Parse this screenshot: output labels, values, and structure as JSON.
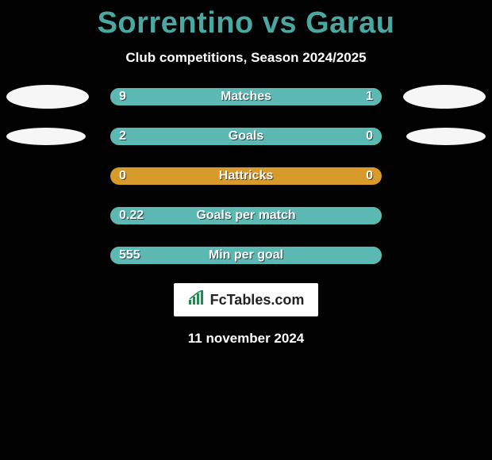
{
  "colors": {
    "background": "#010101",
    "title": "#4aa8a3",
    "text_white": "#ffffff",
    "ellipse": "#f6f6f6",
    "bar_track": "#d89a2b",
    "bar_left_fill": "#5bb8b3",
    "bar_right_fill": "#5bb8b3",
    "brand_bg": "#ffffff",
    "brand_text": "#222222",
    "brand_icon": "#1a8f4d"
  },
  "title": {
    "player_a": "Sorrentino",
    "vs": "vs",
    "player_b": "Garau",
    "fontsize": 38
  },
  "subtitle": "Club competitions, Season 2024/2025",
  "ellipse_sizes": {
    "big_w": 104,
    "big_h": 30,
    "small_w": 100,
    "small_h": 22
  },
  "bar": {
    "track_width": 342,
    "track_height": 22
  },
  "rows": [
    {
      "metric": "Matches",
      "left_value": "9",
      "right_value": "1",
      "left_pct": 76,
      "right_pct": 24,
      "show_left_ellipse": true,
      "left_ellipse_size": "big",
      "show_right_ellipse": true,
      "right_ellipse_size": "big"
    },
    {
      "metric": "Goals",
      "left_value": "2",
      "right_value": "0",
      "left_pct": 78,
      "right_pct": 22,
      "show_left_ellipse": true,
      "left_ellipse_size": "small",
      "show_right_ellipse": true,
      "right_ellipse_size": "small"
    },
    {
      "metric": "Hattricks",
      "left_value": "0",
      "right_value": "0",
      "left_pct": 0,
      "right_pct": 0,
      "show_left_ellipse": false,
      "show_right_ellipse": false
    },
    {
      "metric": "Goals per match",
      "left_value": "0.22",
      "right_value": "",
      "left_pct": 100,
      "right_pct": 0,
      "show_left_ellipse": false,
      "show_right_ellipse": false
    },
    {
      "metric": "Min per goal",
      "left_value": "555",
      "right_value": "",
      "left_pct": 100,
      "right_pct": 0,
      "show_left_ellipse": false,
      "show_right_ellipse": false
    }
  ],
  "brand": {
    "icon": "chart-icon",
    "text": "FcTables.com"
  },
  "date": "11 november 2024"
}
